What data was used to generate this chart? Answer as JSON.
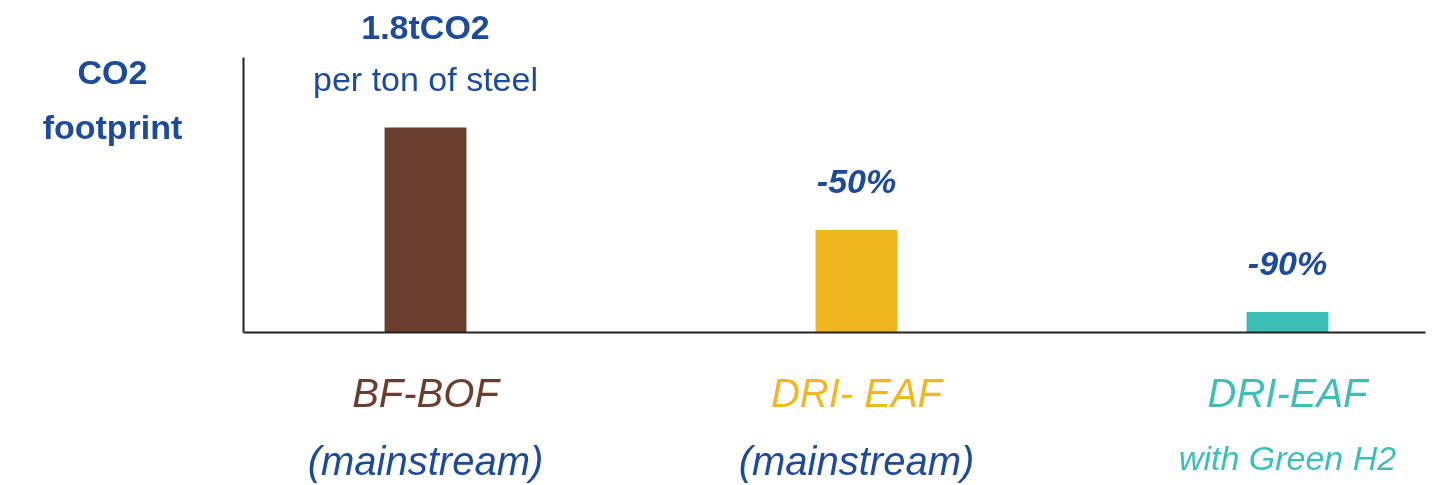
{
  "chart_data": {
    "type": "bar",
    "ylabel": "CO2\nfootprint",
    "categories": [
      "BF-BOF\n(mainstream)",
      "DRI- EAF\n(mainstream)",
      "DRI-EAF\nwith Green H2"
    ],
    "values": [
      1.8,
      0.9,
      0.18
    ],
    "colors": [
      "#6b3d2e",
      "#f0b820",
      "#3dbfb8"
    ],
    "value_labels": [
      "1.8tCO2\nper ton of steel",
      null,
      null
    ],
    "annotations": [
      {
        "text": "-50%",
        "x": "DRI- EAF\n(mainstream)",
        "y": 0.9
      },
      {
        "text": "-90%",
        "x": "DRI-EAF\nwith Green H2",
        "y": 0.18
      }
    ]
  }
}
